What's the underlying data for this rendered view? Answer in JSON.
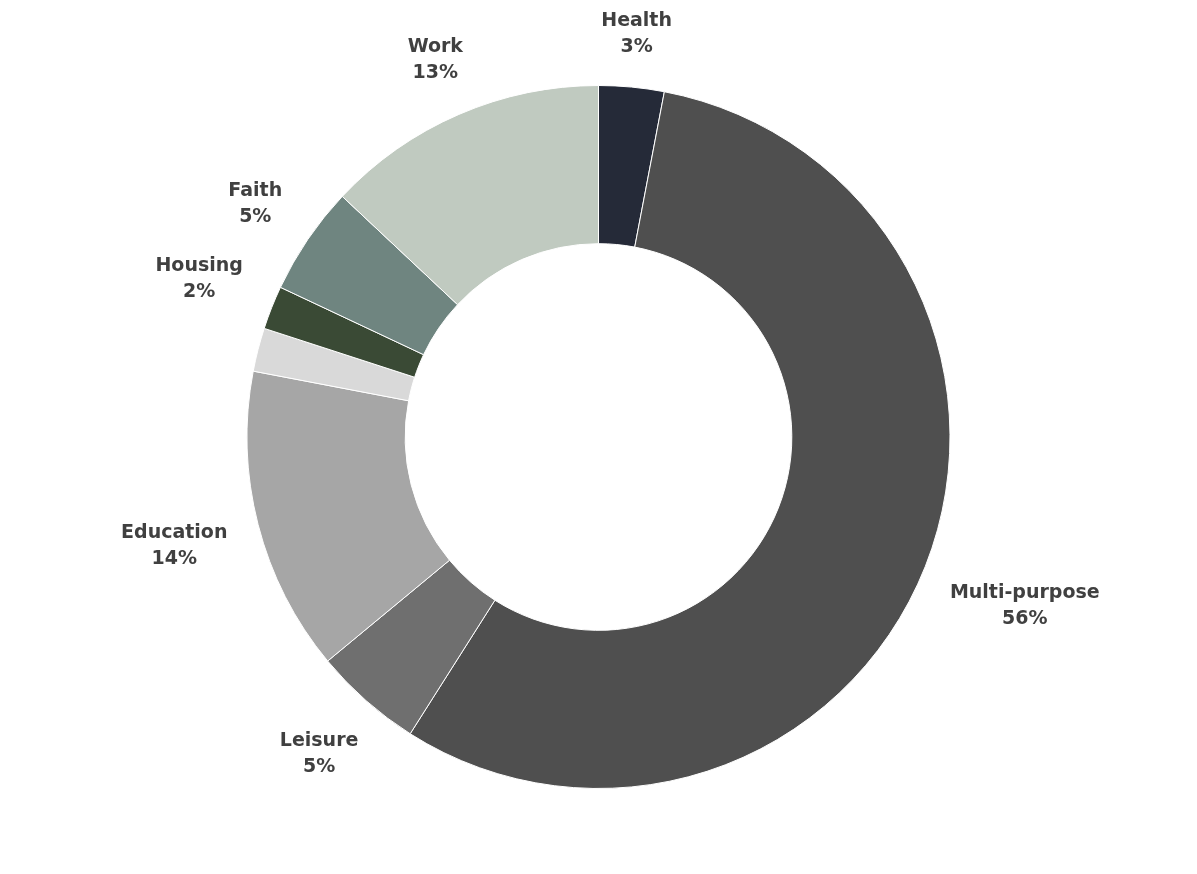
{
  "chart_data": {
    "type": "donut",
    "categories": [
      "Health",
      "Multi-purpose",
      "Leisure",
      "Education",
      null,
      "Housing",
      "Faith",
      "Work"
    ],
    "values": [
      3,
      56,
      5,
      14,
      2,
      2,
      5,
      13
    ],
    "value_labels": [
      "3%",
      "56%",
      "5%",
      "14%",
      null,
      "2%",
      "5%",
      "13%"
    ],
    "colors": [
      "#252a38",
      "#4f4f4f",
      "#6f6f6f",
      "#a6a6a6",
      "#d9d9d9",
      "#3a4a35",
      "#6f8580",
      "#c0cac0"
    ],
    "legend": false
  }
}
